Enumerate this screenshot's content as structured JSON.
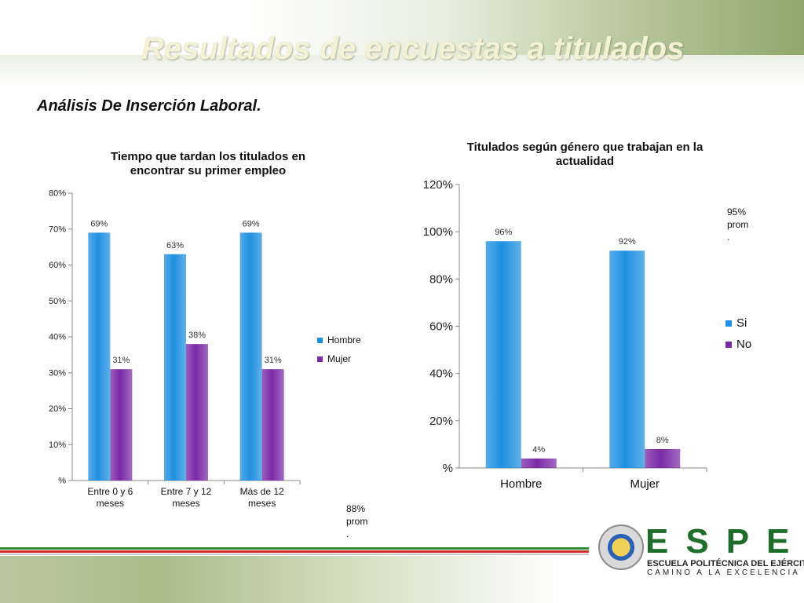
{
  "slide": {
    "title": "Resultados de encuestas a titulados",
    "subtitle": "Análisis De Inserción Laboral."
  },
  "notes": {
    "left": [
      "88%",
      "prom",
      "."
    ],
    "right": [
      "95%",
      "prom",
      "."
    ]
  },
  "logo": {
    "brand": "ESPE",
    "line1": "ESCUELA POLITÉCNICA DEL EJÉRCITO",
    "line2": "CAMINO A LA EXCELENCIA"
  },
  "chart_data": [
    {
      "type": "bar",
      "title_lines": [
        "Tiempo que tardan los titulados en",
        "encontrar su primer empleo"
      ],
      "categories": [
        [
          "Entre 0 y 6",
          "meses"
        ],
        [
          "Entre 7 y 12",
          "meses"
        ],
        [
          "Más de 12",
          "meses"
        ]
      ],
      "series": [
        {
          "name": "Hombre",
          "values": [
            69,
            63,
            69
          ],
          "labels": [
            "69%",
            "63%",
            "69%"
          ],
          "color": "#1e8fe0"
        },
        {
          "name": "Mujer",
          "values": [
            31,
            38,
            31
          ],
          "labels": [
            "31%",
            "38%",
            "31%"
          ],
          "color": "#7a2aa6"
        }
      ],
      "yticks": [
        "%",
        "10%",
        "20%",
        "30%",
        "40%",
        "50%",
        "60%",
        "70%",
        "80%"
      ],
      "ylim": [
        0,
        80
      ],
      "legend_position": "right",
      "grid": false
    },
    {
      "type": "bar",
      "title_lines": [
        "Titulados según género que trabajan en la",
        "actualidad"
      ],
      "categories": [
        [
          "Hombre"
        ],
        [
          "Mujer"
        ]
      ],
      "series": [
        {
          "name": "Si",
          "values": [
            96,
            92
          ],
          "labels": [
            "96%",
            "92%"
          ],
          "color": "#1e8fe0"
        },
        {
          "name": "No",
          "values": [
            4,
            8
          ],
          "labels": [
            "4%",
            "8%"
          ],
          "color": "#7a2aa6"
        }
      ],
      "yticks": [
        "%",
        "20%",
        "40%",
        "60%",
        "80%",
        "100%",
        "120%"
      ],
      "ylim": [
        0,
        120
      ],
      "legend_position": "right",
      "grid": false
    }
  ]
}
